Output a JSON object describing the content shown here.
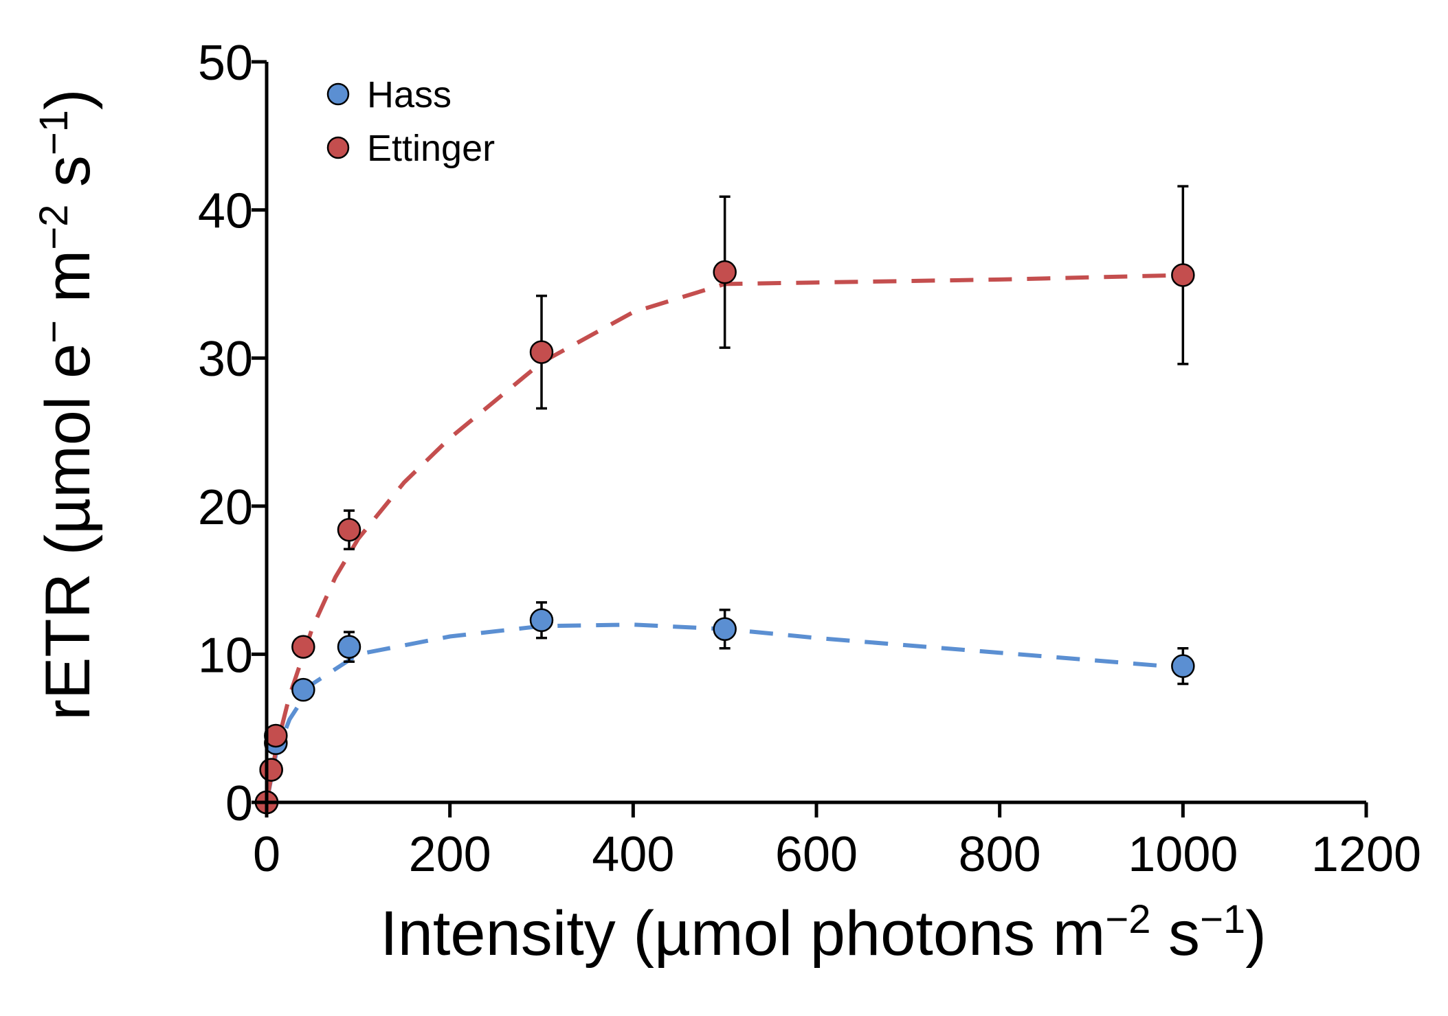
{
  "chart_data": {
    "type": "scatter",
    "title": "",
    "xlabel": "Intensity (µmol photons m−2 s−1)",
    "ylabel": "rETR (µmol e− m−2 s−1)",
    "xlim": [
      0,
      1200
    ],
    "ylim": [
      0,
      50
    ],
    "xticks": [
      0,
      200,
      400,
      600,
      800,
      1000,
      1200
    ],
    "yticks": [
      0,
      10,
      20,
      30,
      40,
      50
    ],
    "grid": false,
    "legend_position": "top-left",
    "colors": {
      "Hass": "#5b8fd2",
      "Ettinger": "#c44e4e"
    },
    "series": [
      {
        "name": "Hass",
        "x": [
          0,
          5,
          10,
          40,
          90,
          300,
          500,
          1000
        ],
        "y": [
          0,
          2.2,
          4.0,
          7.6,
          10.5,
          12.3,
          11.7,
          9.2
        ],
        "error": [
          0,
          0,
          0,
          0.3,
          1.0,
          1.2,
          1.3,
          1.2
        ],
        "fit_x": [
          0,
          10,
          25,
          50,
          100,
          200,
          300,
          400,
          500,
          600,
          800,
          1000
        ],
        "fit_y": [
          0,
          3.2,
          5.6,
          8.0,
          10.0,
          11.2,
          11.9,
          12.0,
          11.7,
          11.1,
          10.1,
          9.1
        ]
      },
      {
        "name": "Ettinger",
        "x": [
          0,
          5,
          10,
          40,
          90,
          300,
          500,
          1000
        ],
        "y": [
          0,
          2.2,
          4.5,
          10.5,
          18.4,
          30.4,
          35.8,
          35.6
        ],
        "error": [
          0,
          0,
          0,
          0,
          1.3,
          3.8,
          5.1,
          6.0
        ],
        "fit_x": [
          0,
          10,
          25,
          50,
          75,
          100,
          150,
          200,
          300,
          400,
          500,
          600,
          800,
          1000
        ],
        "fit_y": [
          0,
          3.5,
          7.2,
          11.8,
          15.2,
          17.8,
          21.6,
          24.6,
          29.7,
          33.1,
          35.0,
          35.1,
          35.3,
          35.6
        ]
      }
    ]
  }
}
